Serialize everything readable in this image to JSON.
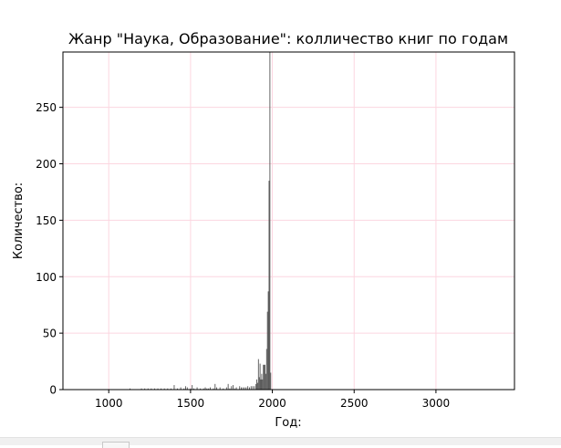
{
  "chart_data": {
    "type": "bar",
    "title": "Жанр \"Наука, Образование\": колличество книг по годам",
    "xlabel": "Год:",
    "ylabel": "Количество:",
    "xlim": [
      720,
      3480
    ],
    "ylim": [
      0,
      299
    ],
    "xticks": [
      {
        "value": 1000,
        "label": "1000"
      },
      {
        "value": 1500,
        "label": "1500"
      },
      {
        "value": 2000,
        "label": "2000"
      },
      {
        "value": 2500,
        "label": "2500"
      },
      {
        "value": 3000,
        "label": "3000"
      }
    ],
    "yticks": [
      {
        "value": 0,
        "label": "0"
      },
      {
        "value": 50,
        "label": "50"
      },
      {
        "value": 100,
        "label": "100"
      },
      {
        "value": 150,
        "label": "150"
      },
      {
        "value": 200,
        "label": "200"
      },
      {
        "value": 250,
        "label": "250"
      }
    ],
    "grid": true,
    "bar_color": "#555555",
    "grid_color": "#fcd6e0",
    "points": [
      [
        1130,
        1
      ],
      [
        1200,
        1
      ],
      [
        1220,
        1
      ],
      [
        1240,
        1
      ],
      [
        1260,
        1
      ],
      [
        1280,
        1
      ],
      [
        1300,
        1
      ],
      [
        1320,
        1
      ],
      [
        1340,
        1
      ],
      [
        1360,
        1
      ],
      [
        1380,
        1
      ],
      [
        1400,
        4
      ],
      [
        1420,
        1
      ],
      [
        1440,
        2
      ],
      [
        1460,
        1
      ],
      [
        1470,
        3
      ],
      [
        1480,
        2
      ],
      [
        1500,
        1
      ],
      [
        1510,
        4
      ],
      [
        1520,
        1
      ],
      [
        1540,
        2
      ],
      [
        1560,
        1
      ],
      [
        1580,
        1
      ],
      [
        1590,
        2
      ],
      [
        1600,
        1
      ],
      [
        1610,
        1
      ],
      [
        1620,
        2
      ],
      [
        1640,
        1
      ],
      [
        1650,
        5
      ],
      [
        1660,
        2
      ],
      [
        1680,
        2
      ],
      [
        1700,
        1
      ],
      [
        1720,
        2
      ],
      [
        1730,
        5
      ],
      [
        1740,
        1
      ],
      [
        1750,
        3
      ],
      [
        1760,
        4
      ],
      [
        1770,
        1
      ],
      [
        1780,
        2
      ],
      [
        1800,
        3
      ],
      [
        1810,
        2
      ],
      [
        1820,
        2
      ],
      [
        1830,
        2
      ],
      [
        1840,
        2
      ],
      [
        1850,
        3
      ],
      [
        1860,
        2
      ],
      [
        1870,
        3
      ],
      [
        1880,
        3
      ],
      [
        1890,
        3
      ],
      [
        1900,
        5
      ],
      [
        1905,
        9
      ],
      [
        1910,
        6
      ],
      [
        1915,
        27
      ],
      [
        1920,
        11
      ],
      [
        1925,
        23
      ],
      [
        1930,
        9
      ],
      [
        1935,
        14
      ],
      [
        1940,
        9
      ],
      [
        1945,
        22
      ],
      [
        1950,
        22
      ],
      [
        1955,
        22
      ],
      [
        1960,
        14
      ],
      [
        1965,
        36
      ],
      [
        1970,
        69
      ],
      [
        1975,
        87
      ],
      [
        1980,
        185
      ],
      [
        1985,
        299
      ],
      [
        1990,
        15
      ]
    ]
  }
}
